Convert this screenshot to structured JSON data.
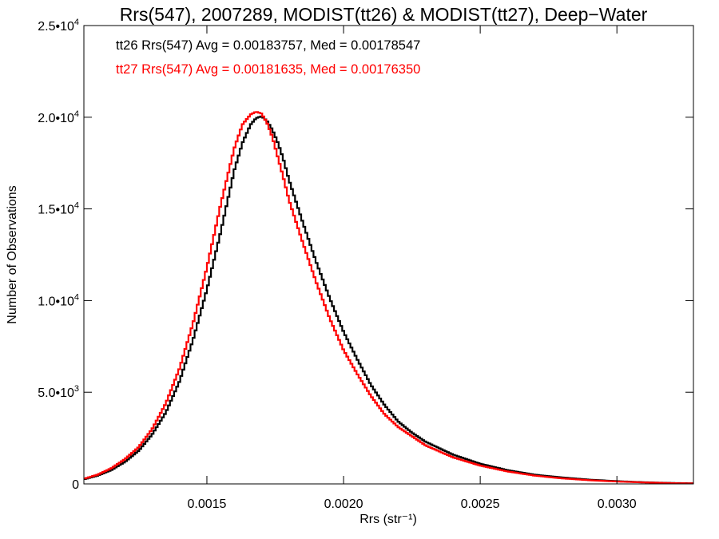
{
  "chart_data": {
    "type": "line",
    "title": "Rrs(547), 2007289, MODIST(tt26) & MODIST(tt27), Deep−Water",
    "xlabel": "Rrs (str⁻¹)",
    "ylabel": "Number of Observations",
    "xlim": [
      0.00105,
      0.00328
    ],
    "ylim": [
      0,
      25000
    ],
    "grid": false,
    "x_ticks": [
      {
        "value": 0.0015,
        "label": "0.0015"
      },
      {
        "value": 0.002,
        "label": "0.0020"
      },
      {
        "value": 0.0025,
        "label": "0.0025"
      },
      {
        "value": 0.003,
        "label": "0.0030"
      }
    ],
    "y_ticks": [
      {
        "value": 0,
        "mant": "0",
        "exp": ""
      },
      {
        "value": 5000,
        "mant": "5.0•10",
        "exp": "3"
      },
      {
        "value": 10000,
        "mant": "1.0•10",
        "exp": "4"
      },
      {
        "value": 15000,
        "mant": "1.5•10",
        "exp": "4"
      },
      {
        "value": 20000,
        "mant": "2.0•10",
        "exp": "4"
      },
      {
        "value": 25000,
        "mant": "2.5•10",
        "exp": "4"
      }
    ],
    "annotations": [
      {
        "text": "tt26 Rrs(547) Avg = 0.00183757, Med = 0.00178547",
        "color": "#000000"
      },
      {
        "text": "tt27 Rrs(547) Avg = 0.00181635, Med = 0.00176350",
        "color": "#ff0000"
      }
    ],
    "series": [
      {
        "color": "#000000",
        "x": [
          0.00105,
          0.0011,
          0.00115,
          0.0012,
          0.00125,
          0.0013,
          0.00135,
          0.0014,
          0.00145,
          0.0015,
          0.00155,
          0.0016,
          0.00163,
          0.00166,
          0.00168,
          0.0017,
          0.00172,
          0.00174,
          0.00176,
          0.00178,
          0.0018,
          0.00185,
          0.0019,
          0.00195,
          0.002,
          0.00205,
          0.0021,
          0.00215,
          0.0022,
          0.00225,
          0.0023,
          0.0024,
          0.0025,
          0.0026,
          0.0027,
          0.0028,
          0.0029,
          0.003,
          0.0031,
          0.0032,
          0.00328
        ],
        "y": [
          250,
          450,
          750,
          1200,
          1800,
          2700,
          3900,
          5600,
          7900,
          10600,
          13700,
          17100,
          18600,
          19600,
          19950,
          20050,
          19800,
          19300,
          18600,
          17700,
          16600,
          14300,
          12100,
          10100,
          8300,
          6800,
          5400,
          4300,
          3400,
          2800,
          2300,
          1600,
          1100,
          750,
          500,
          350,
          230,
          150,
          90,
          50,
          30
        ]
      },
      {
        "color": "#ff0000",
        "x": [
          0.00105,
          0.0011,
          0.00115,
          0.0012,
          0.00125,
          0.0013,
          0.00135,
          0.0014,
          0.00145,
          0.0015,
          0.00155,
          0.0016,
          0.00163,
          0.00166,
          0.00168,
          0.0017,
          0.00172,
          0.00174,
          0.00176,
          0.00178,
          0.0018,
          0.00185,
          0.0019,
          0.00195,
          0.002,
          0.00205,
          0.0021,
          0.00215,
          0.0022,
          0.00225,
          0.0023,
          0.0024,
          0.0025,
          0.0026,
          0.0027,
          0.0028,
          0.0029,
          0.003,
          0.0031,
          0.0032,
          0.00328
        ],
        "y": [
          280,
          500,
          850,
          1350,
          2000,
          3000,
          4400,
          6300,
          8800,
          11800,
          15200,
          18300,
          19600,
          20150,
          20300,
          20200,
          19700,
          18900,
          17800,
          16700,
          15500,
          13200,
          11000,
          9000,
          7300,
          6000,
          4800,
          3800,
          3100,
          2600,
          2100,
          1450,
          1000,
          680,
          450,
          300,
          200,
          130,
          80,
          40,
          25
        ]
      }
    ]
  }
}
